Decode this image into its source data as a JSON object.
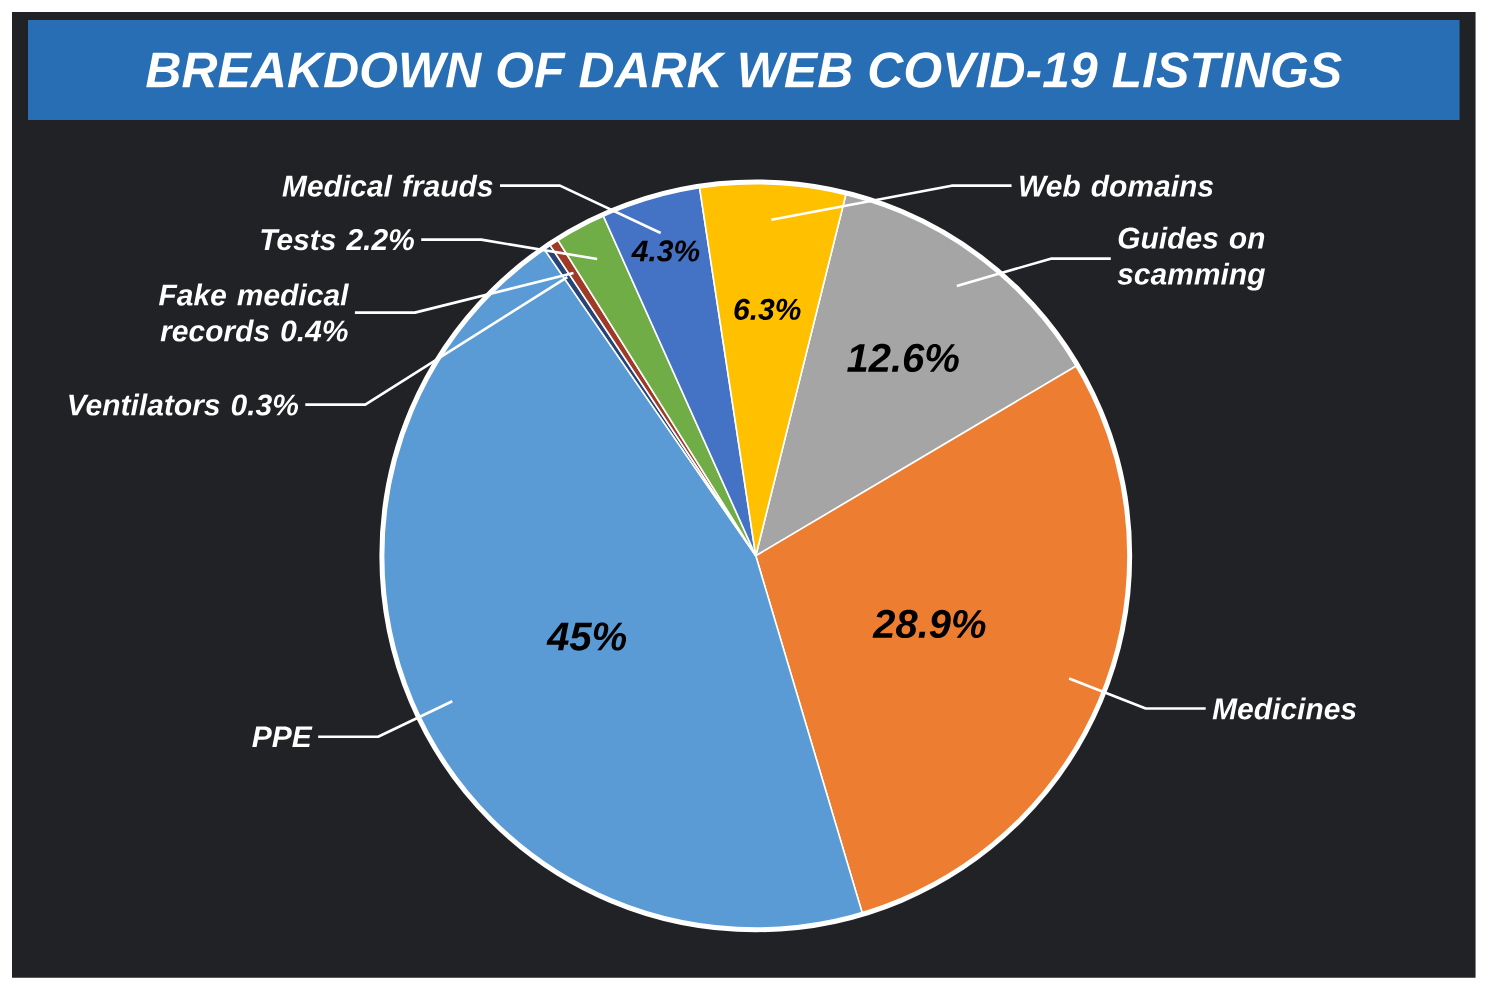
{
  "chart_data": {
    "type": "pie",
    "title": "BREAKDOWN OF DARK WEB COVID-19 LISTINGS",
    "categories": [
      "Guides on scamming",
      "Medicines",
      "PPE",
      "Ventilators",
      "Fake medical records",
      "Tests",
      "Medical frauds",
      "Web domains"
    ],
    "values": [
      12.6,
      28.9,
      45,
      0.3,
      0.4,
      2.2,
      4.3,
      6.3
    ],
    "colors": [
      "#a5a5a5",
      "#ed7d31",
      "#5b9bd5",
      "#264478",
      "#9e3a26",
      "#70ad47",
      "#4472c4",
      "#ffc000"
    ],
    "value_labels": [
      "12.6%",
      "28.9%",
      "45%",
      "0.3%",
      "0.4%",
      "2.2%",
      "4.3%",
      "6.3%"
    ]
  }
}
